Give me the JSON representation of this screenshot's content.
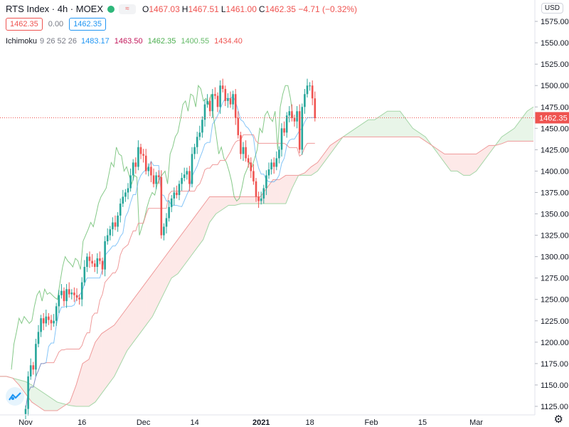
{
  "header": {
    "symbol": "RTS Index · 4h · MOEX",
    "mini_button": "≈",
    "ohlc": [
      {
        "k": "O",
        "v": "1467.03"
      },
      {
        "k": "H",
        "v": "1467.51"
      },
      {
        "k": "L",
        "v": "1461.00"
      },
      {
        "k": "C",
        "v": "1462.35"
      },
      {
        "k": "",
        "v": "−4.71 (−0.32%)"
      }
    ],
    "bid": "1462.35",
    "spread": "0.00",
    "ask": "1462.35"
  },
  "indicator": {
    "name": "Ichimoku",
    "params": "9 26 52 26",
    "values": [
      "1483.17",
      "1463.50",
      "1462.35",
      "1400.55",
      "1434.40"
    ],
    "colors": [
      "#2196f3",
      "#c2185b",
      "#4caf50",
      "#66bb6a",
      "#ef5350"
    ]
  },
  "currency": "USD",
  "colors": {
    "up": "#26a69a",
    "down": "#ef5350",
    "conversion": "#2196f3",
    "base": "#ef9a9a",
    "lagging": "#66bb6a",
    "spanA": "#a5d6a7",
    "spanB": "#ef9a9a"
  },
  "chart_data": {
    "type": "candlestick",
    "interval": "4h",
    "y_range": [
      1115,
      1600
    ],
    "y_ticks": [
      1125,
      1150,
      1175,
      1200,
      1225,
      1250,
      1275,
      1300,
      1325,
      1350,
      1375,
      1400,
      1425,
      1450,
      1475,
      1500,
      1525,
      1550,
      1575
    ],
    "x_labels": [
      {
        "label": "Nov",
        "bar": 0
      },
      {
        "label": "16",
        "bar": 22
      },
      {
        "label": "Dec",
        "bar": 46
      },
      {
        "label": "14",
        "bar": 66
      },
      {
        "label": "2021",
        "bar": 92
      },
      {
        "label": "18",
        "bar": 111
      },
      {
        "label": "Feb",
        "bar": 135
      },
      {
        "label": "15",
        "bar": 155
      },
      {
        "label": "Mar",
        "bar": 176
      }
    ],
    "last_price": 1462.35,
    "closes": [
      1122,
      1160,
      1173,
      1168,
      1198,
      1212,
      1228,
      1222,
      1230,
      1226,
      1222,
      1225,
      1242,
      1255,
      1260,
      1248,
      1262,
      1256,
      1258,
      1255,
      1252,
      1250,
      1270,
      1288,
      1300,
      1295,
      1292,
      1288,
      1298,
      1295,
      1285,
      1318,
      1325,
      1332,
      1340,
      1335,
      1348,
      1362,
      1370,
      1375,
      1380,
      1395,
      1410,
      1405,
      1428,
      1420,
      1418,
      1400,
      1405,
      1395,
      1385,
      1395,
      1393,
      1325,
      1335,
      1345,
      1358,
      1368,
      1375,
      1372,
      1385,
      1392,
      1396,
      1400,
      1385,
      1420,
      1428,
      1440,
      1445,
      1460,
      1478,
      1482,
      1470,
      1490,
      1488,
      1475,
      1500,
      1496,
      1482,
      1485,
      1478,
      1490,
      1462,
      1442,
      1420,
      1428,
      1415,
      1410,
      1400,
      1388,
      1370,
      1365,
      1368,
      1380,
      1395,
      1402,
      1410,
      1405,
      1415,
      1425,
      1450,
      1445,
      1465,
      1470,
      1462,
      1458,
      1470,
      1425,
      1475,
      1490,
      1500,
      1500,
      1485,
      1462
    ],
    "lagging_span": [
      1168,
      1198,
      1212,
      1228,
      1222,
      1230,
      1226,
      1222,
      1225,
      1242,
      1255,
      1260,
      1248,
      1262,
      1256,
      1258,
      1255,
      1252,
      1250,
      1270,
      1288,
      1300,
      1295,
      1292,
      1288,
      1298,
      1295,
      1285,
      1318,
      1325,
      1332,
      1340,
      1335,
      1348,
      1362,
      1370,
      1375,
      1380,
      1395,
      1410,
      1405,
      1428,
      1420,
      1418,
      1400,
      1405,
      1395,
      1385,
      1395,
      1393,
      1325,
      1335,
      1345,
      1358,
      1368,
      1375,
      1372,
      1385,
      1392,
      1396,
      1400,
      1385,
      1420,
      1428,
      1440,
      1445,
      1460,
      1478,
      1482,
      1470,
      1490,
      1488,
      1475,
      1500,
      1496,
      1482,
      1485,
      1478,
      1490,
      1462,
      1442,
      1420,
      1428,
      1415,
      1410,
      1400,
      1388,
      1370,
      1365,
      1368,
      1380,
      1395,
      1402,
      1410,
      1405,
      1415,
      1425,
      1450,
      1445,
      1465,
      1470,
      1462,
      1458,
      1470,
      1425,
      1475,
      1490,
      1500,
      1500,
      1485,
      1462
    ],
    "cloud": {
      "start_bar": 0,
      "span_a": [
        1160,
        1160,
        1158,
        1156,
        1154,
        1150,
        1145,
        1140,
        1135,
        1130,
        1128,
        1126,
        1125,
        1125,
        1125,
        1130,
        1140,
        1150,
        1160,
        1175,
        1190,
        1200,
        1210,
        1220,
        1230,
        1245,
        1260,
        1275,
        1280,
        1290,
        1300,
        1310,
        1320,
        1340,
        1350,
        1355,
        1360,
        1360,
        1362,
        1362,
        1362,
        1362,
        1362,
        1362,
        1362,
        1362,
        1380,
        1395,
        1395,
        1395,
        1400,
        1410,
        1420,
        1430,
        1440,
        1445,
        1450,
        1455,
        1460,
        1460,
        1465,
        1470,
        1470,
        1470,
        1460,
        1450,
        1445,
        1440,
        1430,
        1420,
        1410,
        1400,
        1400,
        1395,
        1395,
        1400,
        1410,
        1420,
        1430,
        1440,
        1445,
        1450,
        1460,
        1470,
        1475
      ],
      "span_b": [
        1160,
        1160,
        1158,
        1150,
        1140,
        1130,
        1125,
        1120,
        1120,
        1120,
        1125,
        1130,
        1150,
        1175,
        1180,
        1200,
        1210,
        1215,
        1220,
        1230,
        1240,
        1250,
        1260,
        1270,
        1280,
        1290,
        1300,
        1310,
        1320,
        1330,
        1340,
        1350,
        1360,
        1370,
        1370,
        1370,
        1370,
        1370,
        1370,
        1370,
        1370,
        1370,
        1380,
        1390,
        1390,
        1395,
        1395,
        1395,
        1398,
        1405,
        1410,
        1420,
        1430,
        1435,
        1440,
        1440,
        1440,
        1440,
        1440,
        1440,
        1440,
        1440,
        1440,
        1440,
        1440,
        1440,
        1440,
        1435,
        1430,
        1425,
        1420,
        1420,
        1420,
        1420,
        1420,
        1420,
        1425,
        1430,
        1430,
        1432,
        1435,
        1435,
        1435,
        1435,
        1435
      ]
    }
  }
}
